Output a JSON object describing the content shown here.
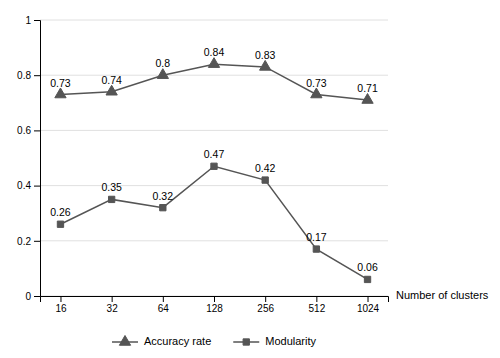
{
  "chart_data": {
    "type": "line",
    "categories": [
      "16",
      "32",
      "64",
      "128",
      "256",
      "512",
      "1024"
    ],
    "series": [
      {
        "name": "Accuracy rate",
        "color": "#555555",
        "marker": "triangle",
        "values": [
          0.73,
          0.74,
          0.8,
          0.84,
          0.83,
          0.73,
          0.71
        ]
      },
      {
        "name": "Modularity",
        "color": "#555555",
        "marker": "square",
        "values": [
          0.26,
          0.35,
          0.32,
          0.47,
          0.42,
          0.17,
          0.06
        ]
      }
    ],
    "xlabel": "Number of clusters",
    "ylim": [
      0,
      1.0
    ],
    "yticks": [
      0,
      0.2,
      0.4,
      0.6,
      0.8,
      1
    ],
    "grid": true,
    "legend": "bottom",
    "data_labels": true
  }
}
